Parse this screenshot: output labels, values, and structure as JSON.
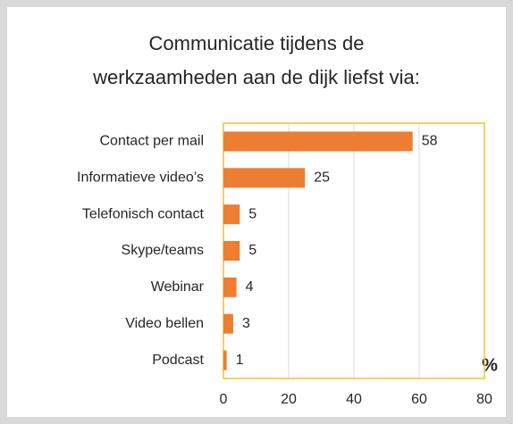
{
  "chart_data": {
    "type": "bar",
    "orientation": "horizontal",
    "title": [
      "Communicatie tijdens de",
      "werkzaamheden aan de dijk liefst via:"
    ],
    "categories": [
      "Contact per mail",
      "Informatieve video’s",
      "Telefonisch contact",
      "Skype/teams",
      "Webinar",
      "Video bellen",
      "Podcast"
    ],
    "values": [
      58,
      25,
      5,
      5,
      4,
      3,
      1
    ],
    "color": "#ed7d31",
    "x_label": "%",
    "xlim": [
      0,
      80
    ],
    "xticks": [
      0,
      20,
      40,
      60,
      80
    ],
    "grid": true
  }
}
